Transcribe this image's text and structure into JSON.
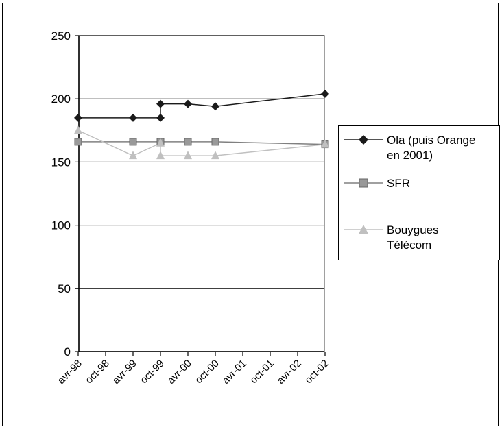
{
  "chart_data": {
    "type": "line",
    "title": "",
    "xlabel": "",
    "ylabel": "",
    "ylim": [
      0,
      250
    ],
    "yticks": [
      0,
      50,
      100,
      150,
      200,
      250
    ],
    "categories": [
      "avr-98",
      "oct-98",
      "avr-99",
      "oct-99",
      "avr-00",
      "oct-00",
      "avr-01",
      "oct-01",
      "avr-02",
      "oct-02"
    ],
    "grid": "horizontal",
    "legend_position": "right",
    "series": [
      {
        "name": "Ola (puis Orange en 2001)",
        "color": "#1a1a1a",
        "marker": "diamond",
        "points": [
          {
            "x": 0,
            "y": 185
          },
          {
            "x": 2,
            "y": 185
          },
          {
            "x": 3,
            "y": 185
          },
          {
            "x": 3,
            "y": 196
          },
          {
            "x": 4,
            "y": 196
          },
          {
            "x": 5,
            "y": 194
          },
          {
            "x": 9,
            "y": 204
          }
        ]
      },
      {
        "name": "SFR",
        "color": "#808080",
        "marker": "square",
        "points": [
          {
            "x": 0,
            "y": 166
          },
          {
            "x": 2,
            "y": 166
          },
          {
            "x": 3,
            "y": 166
          },
          {
            "x": 4,
            "y": 166
          },
          {
            "x": 5,
            "y": 166
          },
          {
            "x": 9,
            "y": 164
          }
        ]
      },
      {
        "name": "Bouygues Télécom",
        "color": "#c0c0c0",
        "marker": "triangle",
        "points": [
          {
            "x": 0,
            "y": 175
          },
          {
            "x": 2,
            "y": 155
          },
          {
            "x": 3,
            "y": 165
          },
          {
            "x": 3,
            "y": 155
          },
          {
            "x": 4,
            "y": 155
          },
          {
            "x": 5,
            "y": 155
          },
          {
            "x": 9,
            "y": 164
          }
        ]
      }
    ]
  },
  "legend": {
    "items": [
      {
        "line1": "Ola (puis Orange",
        "line2": "en 2001)"
      },
      {
        "line1": "SFR",
        "line2": ""
      },
      {
        "line1": "Bouygues",
        "line2": "Télécom"
      }
    ]
  }
}
